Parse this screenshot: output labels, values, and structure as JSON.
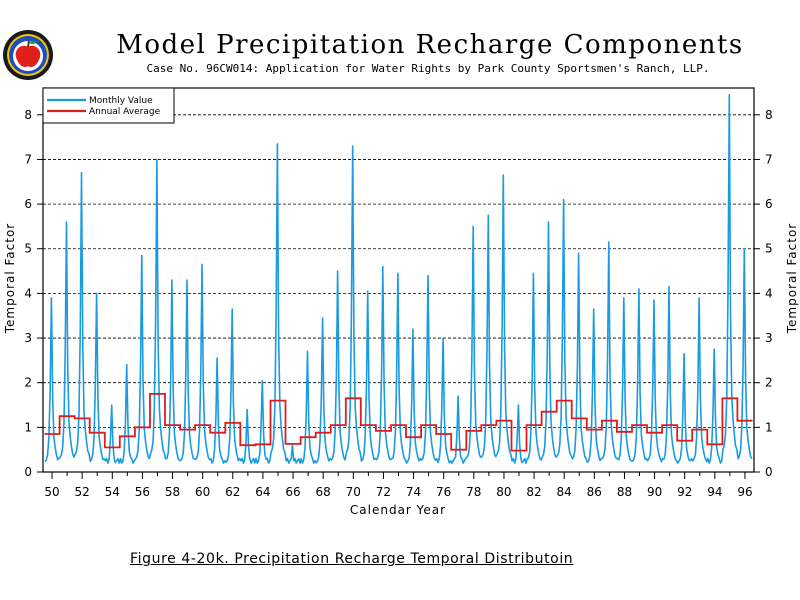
{
  "header": {
    "title": "Model Precipitation Recharge Components",
    "subtitle": "Case No. 96CW014: Application for Water Rights by Park County Sportsmen's Ranch, LLP."
  },
  "footer": {
    "caption": "Figure 4-20k.  Precipitation Recharge Temporal Distributoin"
  },
  "logo": {
    "icon": "apple-seal-logo"
  },
  "colors": {
    "monthly": "#1a9be0",
    "annual": "#e01b1b",
    "grid": "#000000"
  },
  "chart_data": {
    "type": "line",
    "xlabel": "Calendar Year",
    "ylabel": "Temporal Factor",
    "ylabel_right": "Temporal Factor",
    "xlim": [
      1949.4,
      1996.6
    ],
    "ylim": [
      0,
      8.6
    ],
    "x_ticks": [
      "50",
      "52",
      "54",
      "56",
      "58",
      "60",
      "62",
      "64",
      "66",
      "68",
      "70",
      "72",
      "74",
      "76",
      "78",
      "80",
      "82",
      "84",
      "86",
      "88",
      "90",
      "92",
      "94",
      "96"
    ],
    "y_ticks": [
      0,
      1,
      2,
      3,
      4,
      5,
      6,
      7,
      8
    ],
    "grid": "horizontal dashed",
    "legend_position": "top-left",
    "series": [
      {
        "name": "Monthly Value",
        "years": [
          1950,
          1951,
          1952,
          1953,
          1954,
          1955,
          1956,
          1957,
          1958,
          1959,
          1960,
          1961,
          1962,
          1963,
          1964,
          1965,
          1966,
          1967,
          1968,
          1969,
          1970,
          1971,
          1972,
          1973,
          1974,
          1975,
          1976,
          1977,
          1978,
          1979,
          1980,
          1981,
          1982,
          1983,
          1984,
          1985,
          1986,
          1987,
          1988,
          1989,
          1990,
          1991,
          1992,
          1993,
          1994,
          1995,
          1996
        ],
        "annual_peak": [
          3.9,
          5.6,
          6.7,
          4.0,
          1.5,
          2.4,
          4.85,
          7.0,
          4.3,
          4.3,
          4.65,
          2.55,
          3.65,
          1.4,
          2.05,
          7.35,
          0.6,
          2.7,
          3.45,
          4.5,
          7.3,
          4.05,
          4.6,
          4.45,
          3.2,
          4.4,
          3.0,
          1.7,
          5.5,
          5.75,
          6.65,
          1.5,
          4.45,
          5.6,
          6.1,
          4.9,
          3.65,
          5.15,
          3.9,
          4.1,
          3.85,
          4.15,
          2.65,
          3.9,
          2.75,
          8.45,
          5.0
        ]
      },
      {
        "name": "Annual Average",
        "years": [
          1950,
          1951,
          1952,
          1953,
          1954,
          1955,
          1956,
          1957,
          1958,
          1959,
          1960,
          1961,
          1962,
          1963,
          1964,
          1965,
          1966,
          1967,
          1968,
          1969,
          1970,
          1971,
          1972,
          1973,
          1974,
          1975,
          1976,
          1977,
          1978,
          1979,
          1980,
          1981,
          1982,
          1983,
          1984,
          1985,
          1986,
          1987,
          1988,
          1989,
          1990,
          1991,
          1992,
          1993,
          1994,
          1995,
          1996
        ],
        "values": [
          0.85,
          1.25,
          1.2,
          0.88,
          0.55,
          0.8,
          1.0,
          1.75,
          1.05,
          0.95,
          1.05,
          0.88,
          1.1,
          0.6,
          0.62,
          1.6,
          0.63,
          0.78,
          0.88,
          1.05,
          1.65,
          1.05,
          0.92,
          1.05,
          0.78,
          1.05,
          0.85,
          0.5,
          0.92,
          1.05,
          1.15,
          0.48,
          1.05,
          1.35,
          1.6,
          1.2,
          0.95,
          1.15,
          0.9,
          1.05,
          0.88,
          1.05,
          0.7,
          0.95,
          0.62,
          1.65,
          1.15
        ]
      }
    ]
  }
}
